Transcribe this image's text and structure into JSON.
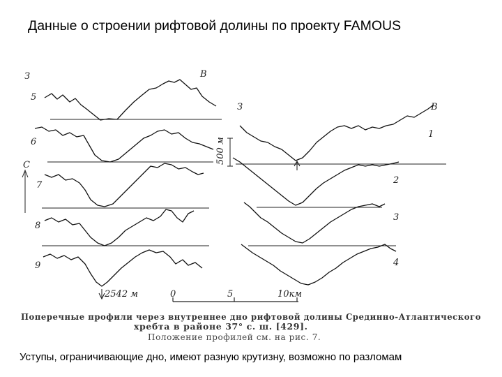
{
  "slide": {
    "title": "Данные о строении рифтовой долины по проекту FAMOUS",
    "bottom_text": "Уступы, ограничивающие дно, имеют разную крутизну, возможно по разломам"
  },
  "figure": {
    "left_labels": {
      "top_letter": "З",
      "top_letter_right": "В",
      "side_letter": "С",
      "profiles": [
        "5",
        "6",
        "7",
        "8",
        "9"
      ],
      "depth_mark": "2542 м"
    },
    "right_labels": {
      "top_letter": "З",
      "top_letter_right": "В",
      "vertical_scale": "500 м",
      "profiles": [
        "1",
        "2",
        "3",
        "4"
      ]
    },
    "scale_bar": {
      "ticks": [
        "0",
        "5",
        "10км"
      ]
    },
    "caption": {
      "line1": "Поперечные профили через внутреннее дно рифтовой долины Срединно-Атлантического",
      "line2": "хребта в районе 37° с. ш. [429].",
      "line3": "Положение профилей см. на рис. 7."
    }
  }
}
